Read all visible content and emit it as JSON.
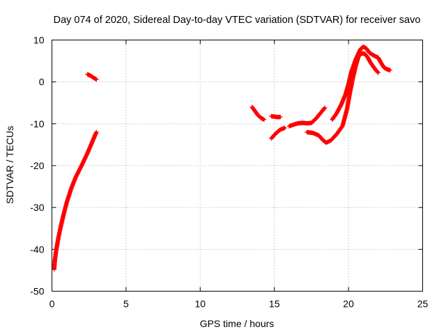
{
  "chart_data": {
    "type": "scatter",
    "title": "Day 074 of 2020, Sidereal Day-to-day VTEC variation (SDTVAR) for receiver savo",
    "xlabel": "GPS time / hours",
    "ylabel": "SDTVAR / TECUs",
    "xlim": [
      0,
      25
    ],
    "ylim": [
      -50,
      10
    ],
    "xticks": [
      0,
      5,
      10,
      15,
      20,
      25
    ],
    "xtick_labels": [
      "0",
      "5",
      "10",
      "15",
      "20",
      "25"
    ],
    "yticks": [
      -50,
      -40,
      -30,
      -20,
      -10,
      0,
      10
    ],
    "ytick_labels": [
      "-50",
      "-40",
      "-30",
      "-20",
      "-10",
      "0",
      "10"
    ],
    "grid": true,
    "marker": "+",
    "color": "#ff0000",
    "series": [
      {
        "name": "SDTVAR",
        "segments": [
          [
            [
              0.15,
              -44.8
            ],
            [
              0.2,
              -42.5
            ],
            [
              0.3,
              -40.0
            ],
            [
              0.45,
              -37.0
            ],
            [
              0.6,
              -34.5
            ],
            [
              0.8,
              -31.5
            ],
            [
              1.0,
              -28.8
            ],
            [
              1.3,
              -25.5
            ],
            [
              1.6,
              -22.8
            ],
            [
              2.0,
              -20.0
            ],
            [
              2.4,
              -17.0
            ],
            [
              2.7,
              -14.5
            ],
            [
              3.0,
              -12.0
            ]
          ],
          [
            [
              2.4,
              1.8
            ],
            [
              2.6,
              1.5
            ],
            [
              2.8,
              1.0
            ],
            [
              3.0,
              0.6
            ]
          ],
          [
            [
              13.5,
              -6.0
            ],
            [
              13.7,
              -7.0
            ],
            [
              13.9,
              -8.0
            ],
            [
              14.1,
              -8.6
            ],
            [
              14.3,
              -9.0
            ]
          ],
          [
            [
              14.8,
              -8.2
            ],
            [
              15.0,
              -8.3
            ],
            [
              15.2,
              -8.4
            ],
            [
              15.4,
              -8.4
            ]
          ],
          [
            [
              14.8,
              -13.5
            ],
            [
              15.1,
              -12.3
            ],
            [
              15.4,
              -11.4
            ],
            [
              15.7,
              -11.0
            ]
          ],
          [
            [
              16.0,
              -10.6
            ],
            [
              16.3,
              -10.2
            ],
            [
              16.6,
              -9.9
            ],
            [
              16.9,
              -9.8
            ],
            [
              17.2,
              -9.9
            ],
            [
              17.5,
              -9.8
            ],
            [
              17.8,
              -8.8
            ],
            [
              18.1,
              -7.5
            ],
            [
              18.4,
              -6.2
            ]
          ],
          [
            [
              17.2,
              -12.0
            ],
            [
              17.6,
              -12.2
            ],
            [
              18.0,
              -12.8
            ],
            [
              18.3,
              -14.0
            ],
            [
              18.5,
              -14.5
            ],
            [
              18.8,
              -14.0
            ],
            [
              19.2,
              -12.5
            ],
            [
              19.6,
              -10.5
            ],
            [
              19.9,
              -6.5
            ],
            [
              20.1,
              -2.5
            ],
            [
              20.3,
              1.0
            ],
            [
              20.5,
              4.0
            ],
            [
              20.7,
              6.3
            ],
            [
              20.9,
              6.8
            ],
            [
              21.1,
              6.7
            ],
            [
              21.3,
              5.8
            ],
            [
              21.5,
              4.5
            ],
            [
              21.8,
              3.0
            ],
            [
              22.0,
              2.2
            ]
          ],
          [
            [
              18.9,
              -9.0
            ],
            [
              19.2,
              -7.5
            ],
            [
              19.5,
              -5.5
            ],
            [
              19.8,
              -3.0
            ],
            [
              20.0,
              -0.5
            ],
            [
              20.2,
              2.5
            ],
            [
              20.5,
              5.5
            ],
            [
              20.8,
              7.8
            ],
            [
              21.0,
              8.4
            ],
            [
              21.2,
              8.0
            ],
            [
              21.4,
              7.0
            ],
            [
              21.7,
              6.3
            ],
            [
              22.0,
              5.8
            ],
            [
              22.2,
              4.5
            ],
            [
              22.4,
              3.4
            ],
            [
              22.6,
              3.0
            ],
            [
              22.8,
              2.8
            ]
          ]
        ]
      }
    ]
  }
}
